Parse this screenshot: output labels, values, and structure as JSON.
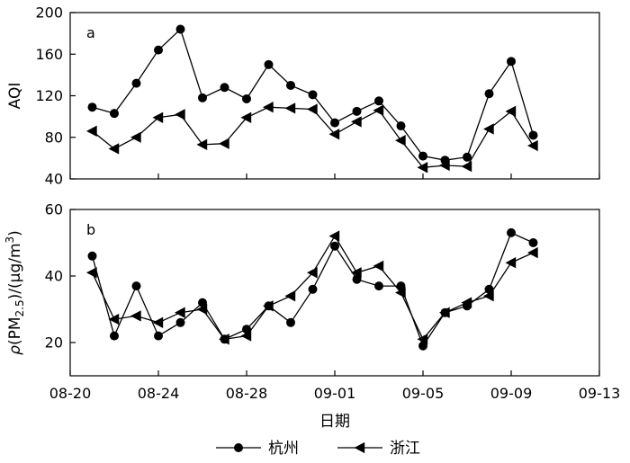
{
  "chart_data": [
    {
      "type": "line",
      "panel_label": "a",
      "ylabel": "AQI",
      "ylim": [
        40,
        200
      ],
      "yticks": [
        40,
        80,
        120,
        160,
        200
      ],
      "xlim": [
        "08-20",
        "09-13"
      ],
      "x": [
        "08-21",
        "08-22",
        "08-23",
        "08-24",
        "08-25",
        "08-26",
        "08-27",
        "08-28",
        "08-29",
        "08-30",
        "08-31",
        "09-01",
        "09-02",
        "09-03",
        "09-04",
        "09-05",
        "09-06",
        "09-07",
        "09-08",
        "09-09",
        "09-10"
      ],
      "series": [
        {
          "name": "杭州",
          "marker": "circle",
          "values": [
            109,
            103,
            132,
            164,
            184,
            118,
            128,
            117,
            150,
            130,
            121,
            94,
            105,
            115,
            91,
            62,
            58,
            61,
            122,
            153,
            82
          ]
        },
        {
          "name": "浙江",
          "marker": "left-triangle",
          "values": [
            86,
            69,
            80,
            99,
            102,
            73,
            74,
            99,
            109,
            108,
            107,
            83,
            95,
            106,
            77,
            51,
            53,
            52,
            88,
            105,
            72
          ]
        }
      ]
    },
    {
      "type": "line",
      "panel_label": "b",
      "ylabel": "ρ(PM2.5)/(μg/m3)",
      "ylim": [
        10,
        60
      ],
      "yticks": [
        20,
        40,
        60
      ],
      "xlim": [
        "08-20",
        "09-13"
      ],
      "xlabel": "日期",
      "xticks": [
        "08-20",
        "08-24",
        "08-28",
        "09-01",
        "09-05",
        "09-09",
        "09-13"
      ],
      "x": [
        "08-21",
        "08-22",
        "08-23",
        "08-24",
        "08-25",
        "08-26",
        "08-27",
        "08-28",
        "08-29",
        "08-30",
        "08-31",
        "09-01",
        "09-02",
        "09-03",
        "09-04",
        "09-05",
        "09-06",
        "09-07",
        "09-08",
        "09-09",
        "09-10"
      ],
      "series": [
        {
          "name": "杭州",
          "marker": "circle",
          "values": [
            46,
            22,
            37,
            22,
            26,
            32,
            21,
            24,
            31,
            26,
            36,
            49,
            39,
            37,
            37,
            19,
            29,
            31,
            36,
            53,
            50
          ]
        },
        {
          "name": "浙江",
          "marker": "left-triangle",
          "values": [
            41,
            27,
            28,
            26,
            29,
            30,
            21,
            22,
            31,
            34,
            41,
            52,
            41,
            43,
            35,
            21,
            29,
            32,
            34,
            44,
            47
          ]
        }
      ]
    }
  ],
  "legend": [
    {
      "label": "杭州",
      "marker": "circle"
    },
    {
      "label": "浙江",
      "marker": "left-triangle"
    }
  ]
}
